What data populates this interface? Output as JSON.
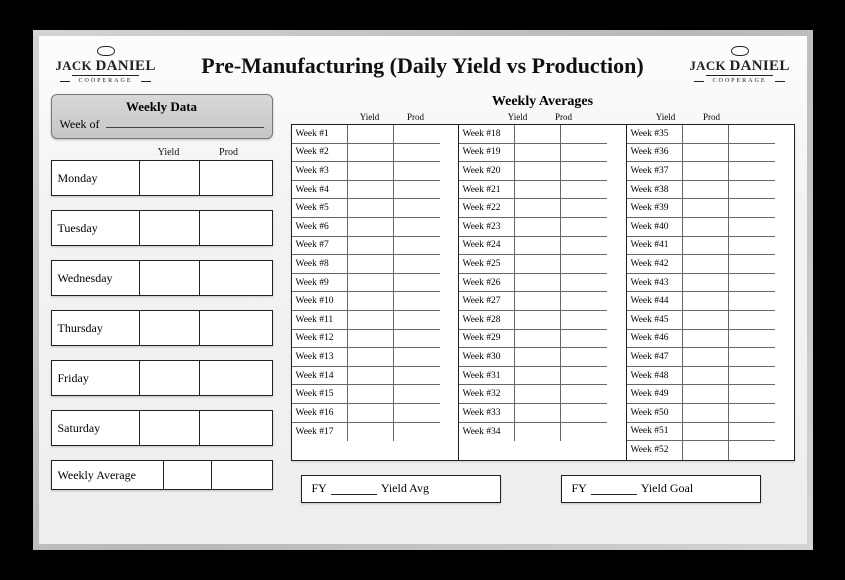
{
  "brand": {
    "name_line1": "JACK",
    "name_line2": "DANIEL",
    "subline": "COOPERAGE"
  },
  "title": "Pre-Manufacturing (Daily Yield vs Production)",
  "left": {
    "section_title": "Weekly Data",
    "week_of_label": "Week of",
    "col_yield": "Yield",
    "col_prod": "Prod",
    "days": [
      "Monday",
      "Tuesday",
      "Wednesday",
      "Thursday",
      "Friday",
      "Saturday"
    ],
    "weekly_average_label": "Weekly Average"
  },
  "right": {
    "section_title": "Weekly Averages",
    "col_yield": "Yield",
    "col_prod": "Prod",
    "week_prefix": "Week #",
    "columns": [
      [
        1,
        2,
        3,
        4,
        5,
        6,
        7,
        8,
        9,
        10,
        11,
        12,
        13,
        14,
        15,
        16,
        17
      ],
      [
        18,
        19,
        20,
        21,
        22,
        23,
        24,
        25,
        26,
        27,
        28,
        29,
        30,
        31,
        32,
        33,
        34
      ],
      [
        35,
        36,
        37,
        38,
        39,
        40,
        41,
        42,
        43,
        44,
        45,
        46,
        47,
        48,
        49,
        50,
        51,
        52
      ]
    ],
    "fy_label": "FY",
    "yield_avg_label": "Yield Avg",
    "yield_goal_label": "Yield Goal"
  },
  "style": {
    "border_color": "#222222",
    "bg_gradient_top": "#fdfdfd",
    "bg_gradient_bottom": "#eeeeee",
    "frame_color": "#c0c0c0"
  }
}
